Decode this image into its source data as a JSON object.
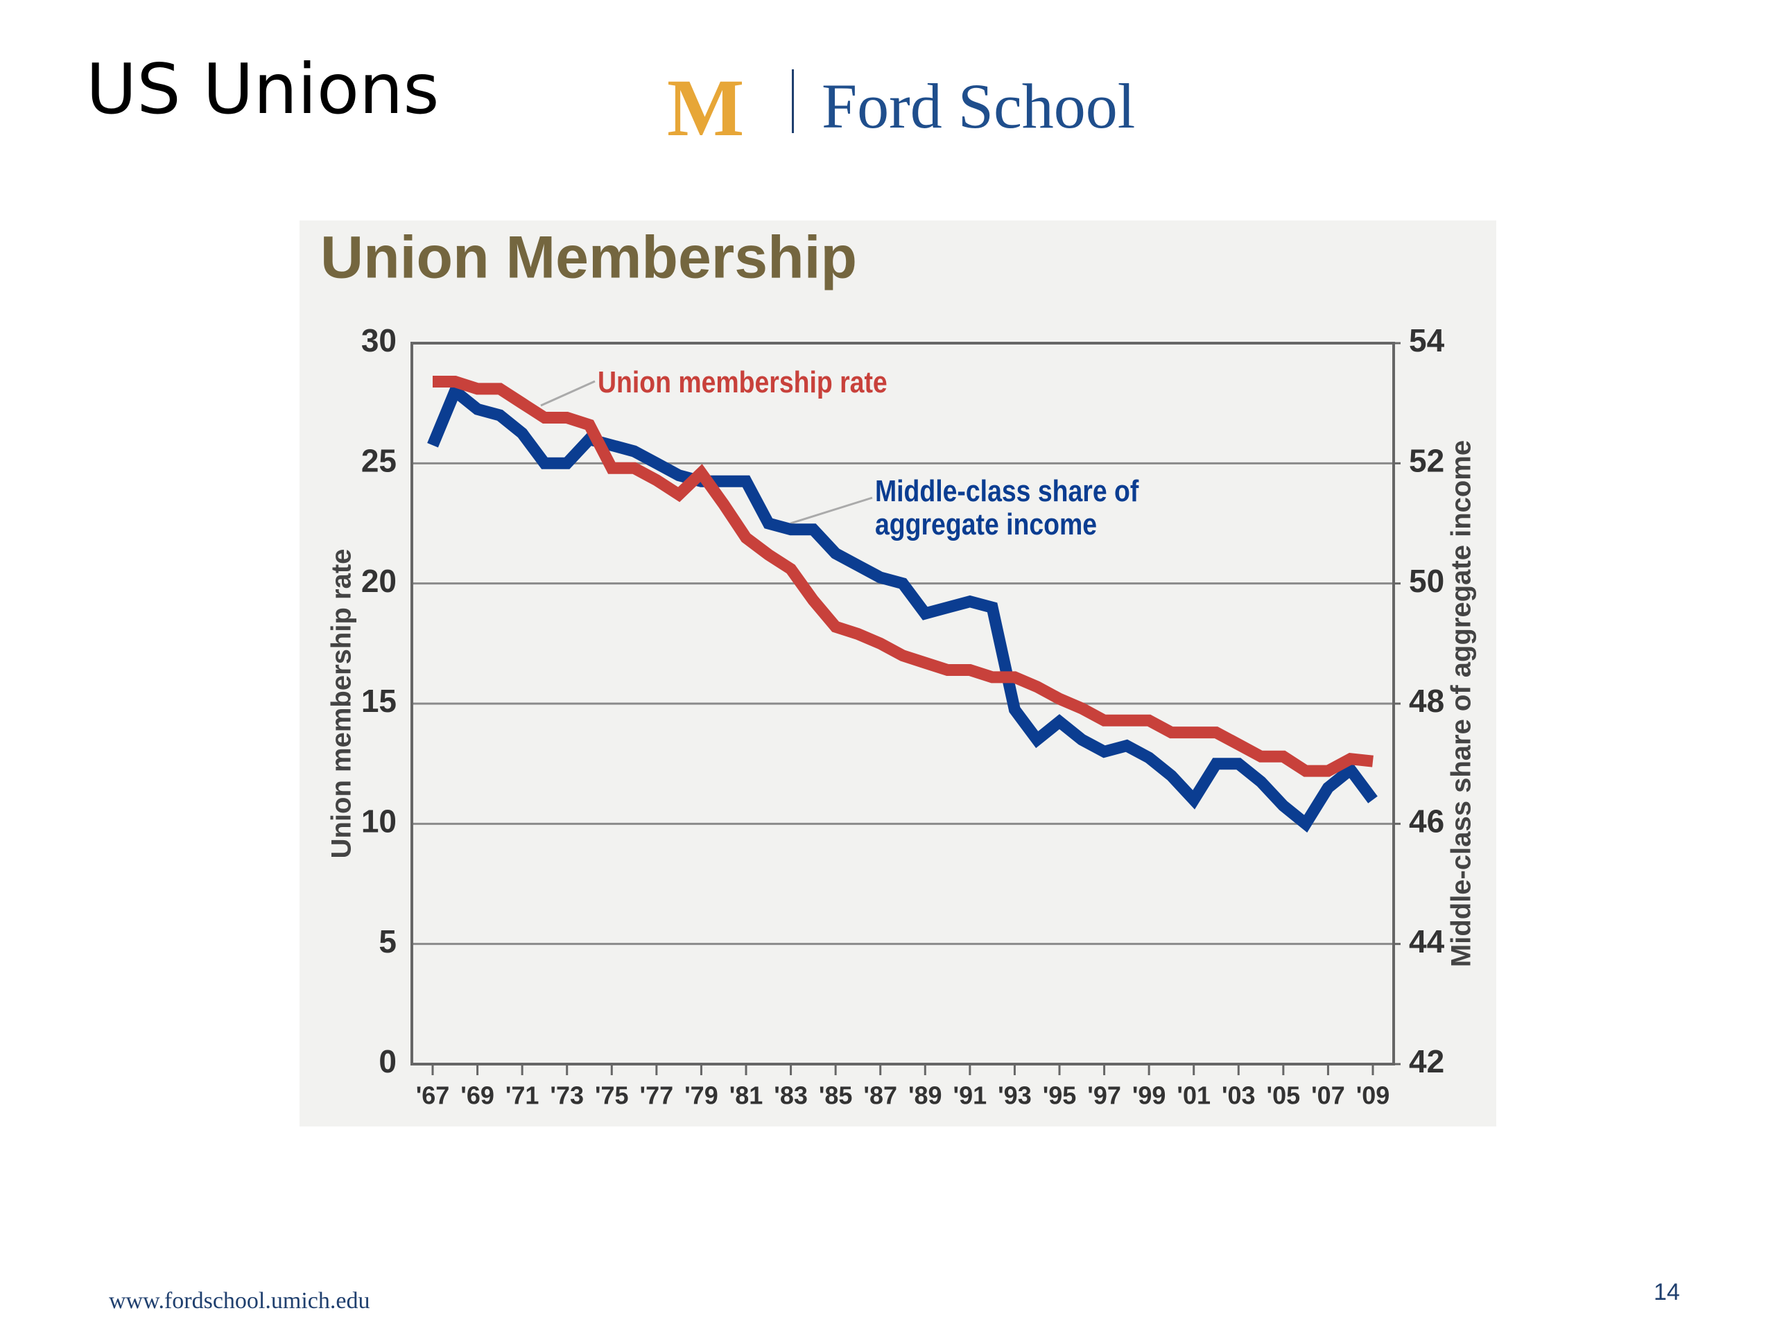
{
  "slide": {
    "title": "US Unions",
    "logo_mark": "M",
    "logo_text": "Ford School",
    "footer": "www.fordschool.umich.edu",
    "page_number": "14"
  },
  "chart_data": {
    "type": "line",
    "title": "Union Membership",
    "y_label": "Union membership rate",
    "y2_label": "Middle-class share of aggregate income",
    "categories": [
      "'67",
      null,
      "'69",
      null,
      "'71",
      null,
      "'73",
      null,
      "'75",
      null,
      "'77",
      null,
      "'79",
      null,
      "'81",
      null,
      "'83",
      null,
      "'85",
      null,
      "'87",
      null,
      "'89",
      null,
      "'91",
      null,
      "'93",
      null,
      "'95",
      null,
      "'97",
      null,
      "'99",
      null,
      "'01",
      null,
      "'03",
      null,
      "'05",
      null,
      "'07",
      null,
      "'09"
    ],
    "series": [
      {
        "name": "Union membership rate",
        "color": "#c8413b",
        "axis": "y",
        "values": [
          28.4,
          28.4,
          28.1,
          28.1,
          27.5,
          26.9,
          26.9,
          26.6,
          24.8,
          24.8,
          24.3,
          23.7,
          24.6,
          23.3,
          21.9,
          21.2,
          20.6,
          19.3,
          18.2,
          17.9,
          17.5,
          17.0,
          16.7,
          16.4,
          16.4,
          16.1,
          16.1,
          15.7,
          15.2,
          14.8,
          14.3,
          14.3,
          14.3,
          13.8,
          13.8,
          13.8,
          13.3,
          12.8,
          12.8,
          12.2,
          12.2,
          12.7,
          12.6
        ]
      },
      {
        "name": "Middle-class share of aggregate income",
        "color": "#0b3d91",
        "axis": "y2",
        "values": [
          52.3,
          53.2,
          52.9,
          52.8,
          52.5,
          52.0,
          52.0,
          52.4,
          52.3,
          52.2,
          52.0,
          51.8,
          51.7,
          51.7,
          51.7,
          51.0,
          50.9,
          50.9,
          50.5,
          50.3,
          50.1,
          50.0,
          49.5,
          49.6,
          49.7,
          49.6,
          47.9,
          47.4,
          47.7,
          47.4,
          47.2,
          47.3,
          47.1,
          46.8,
          46.4,
          47.0,
          47.0,
          46.7,
          46.3,
          46.0,
          46.6,
          46.9,
          46.4
        ]
      }
    ],
    "ylim": [
      0,
      30
    ],
    "yticks": [
      0,
      5,
      10,
      15,
      20,
      25,
      30
    ],
    "y2lim": [
      42,
      54
    ],
    "y2ticks": [
      42,
      44,
      46,
      48,
      50,
      52,
      54
    ],
    "grid": true
  }
}
